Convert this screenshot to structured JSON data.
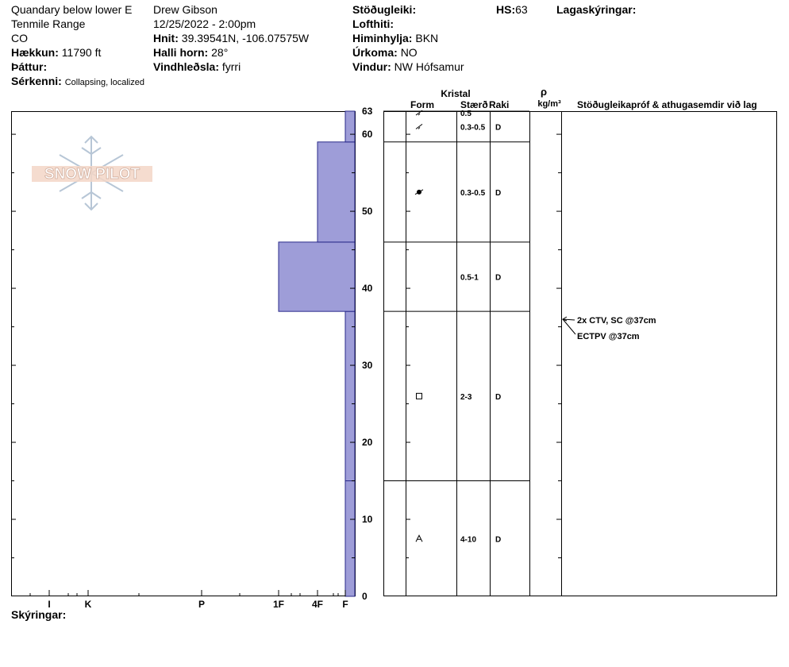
{
  "header": {
    "location_line1": "Quandary below lower E",
    "location_line2": "Tenmile Range",
    "state": "CO",
    "elevation_label": "Hækkun:",
    "elevation_value": "11790 ft",
    "aspect_label": "Þáttur:",
    "aspect_value": "",
    "features_label": "Sérkenni:",
    "features_value": "Collapsing, localized",
    "observer": "Drew Gibson",
    "datetime": "12/25/2022 - 2:00pm",
    "coords_label": "Hnit:",
    "coords_value": "39.39541N, -106.07575W",
    "slope_label": "Halli horn:",
    "slope_value": "28°",
    "windload_label": "Vindhleðsla:",
    "windload_value": "fyrri",
    "stability_label": "Stöðugleiki:",
    "stability_value": "",
    "airtemp_label": "Lofthiti:",
    "airtemp_value": "",
    "sky_label": "Himinhylja:",
    "sky_value": "BKN",
    "precip_label": "Úrkoma:",
    "precip_value": "NO",
    "wind_label": "Vindur:",
    "wind_value": "NW Hófsamur",
    "hs_label": "HS:",
    "hs_value": "63",
    "legend_label": "Lagaskýringar:"
  },
  "logo_text": "SNOW PILOT",
  "footer": {
    "notes_label": "Skýringar:"
  },
  "table_headers": {
    "crystal": "Kristal",
    "form": "Form",
    "size": "Stærð",
    "moisture": "Raki",
    "density_symbol": "ρ",
    "density_unit": "kg/m³",
    "comments": "Stöðugleikapróf & athugasemdir við lag"
  },
  "tests": [
    {
      "text": "2x CTV, SC @37cm",
      "depth": 37
    },
    {
      "text": "ECTPV @37cm",
      "depth": 37
    }
  ],
  "chart_data": {
    "type": "bar",
    "title": "",
    "ylabel": "",
    "ylim": [
      0,
      63
    ],
    "y_ticks": [
      0,
      10,
      20,
      30,
      40,
      50,
      60,
      63
    ],
    "x_ticks": [
      "I",
      "K",
      "P",
      "1F",
      "4F",
      "F"
    ],
    "x_order": "right-to-left hardness (F softest at right)",
    "bar_color": "#9e9dd8",
    "layers": [
      {
        "bottom": 0,
        "top": 15,
        "hardness": "F",
        "form": "depth-hoar",
        "size": "4-10",
        "moisture": "D"
      },
      {
        "bottom": 15,
        "top": 37,
        "hardness": "F",
        "form": "faceted",
        "size": "2-3",
        "moisture": "D"
      },
      {
        "bottom": 37,
        "top": 46,
        "hardness": "1F",
        "form": "",
        "size": "0.5-1",
        "moisture": "D"
      },
      {
        "bottom": 46,
        "top": 59,
        "hardness": "4F",
        "form": "rounded",
        "size": "0.3-0.5",
        "moisture": "D"
      },
      {
        "bottom": 59,
        "top": 63,
        "hardness": "F",
        "form": "decomposing",
        "size": "0.3-0.5",
        "moisture": "D"
      },
      {
        "bottom": 63,
        "top": 63,
        "hardness": "F",
        "form": "decomposing",
        "size": "0.5",
        "moisture": ""
      }
    ]
  }
}
